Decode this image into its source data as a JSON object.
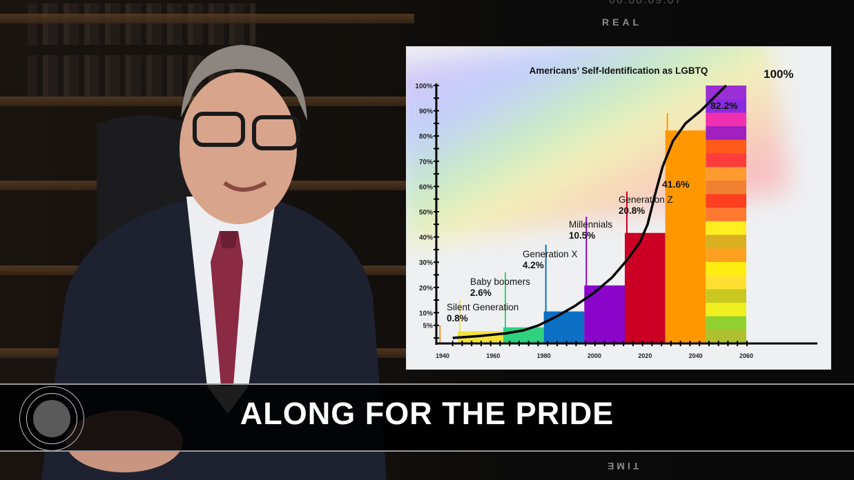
{
  "broadcast": {
    "hud_top_label": "REAL",
    "hud_bottom_label": "TIME",
    "timecode": "00:00:09:07",
    "lower_third_title": "ALONG FOR THE PRIDE"
  },
  "chart_data": {
    "type": "bar",
    "title": "Americans’ Self-Identification as LGBTQ",
    "xlabel": "",
    "ylabel": "",
    "x_ticks": [
      "1940",
      "1960",
      "1980",
      "2000",
      "2020",
      "2040",
      "2060"
    ],
    "y_ticks": [
      "5%",
      "10%",
      "20%",
      "30%",
      "40%",
      "50%",
      "60%",
      "70%",
      "80%",
      "90%",
      "100%"
    ],
    "xlim": [
      1940,
      2060
    ],
    "ylim": [
      0,
      100
    ],
    "grid": false,
    "bars": [
      {
        "category": "Silent Generation",
        "label": "0.8%",
        "value": 0.8,
        "start": 1938,
        "end": 1946,
        "color": "#e8952a"
      },
      {
        "category": "Baby boomers",
        "label": "2.6%",
        "value": 2.6,
        "start": 1946,
        "end": 1964,
        "color": "#f2e23a"
      },
      {
        "category": "Generation X",
        "label": "4.2%",
        "value": 4.2,
        "start": 1964,
        "end": 1980,
        "color": "#2fd07e"
      },
      {
        "category": "Millennials",
        "label": "10.5%",
        "value": 10.5,
        "start": 1980,
        "end": 1996,
        "color": "#0b6fc4"
      },
      {
        "category": "Generation Z",
        "label": "20.8%",
        "value": 20.8,
        "start": 1996,
        "end": 2012,
        "color": "#8a05c9"
      },
      {
        "category": "",
        "label": "41.6%",
        "value": 41.6,
        "start": 2012,
        "end": 2028,
        "color": "#cc0024"
      },
      {
        "category": "",
        "label": "82.2%",
        "value": 82.2,
        "start": 2028,
        "end": 2044,
        "color": "#ff9800"
      },
      {
        "category": "",
        "label": "100%",
        "value": 100,
        "start": 2044,
        "end": 2060,
        "color": "rainbow"
      }
    ],
    "rainbow_stripes": [
      "#9b2fd6",
      "#8a2be2",
      "#f030b0",
      "#a020c0",
      "#ff5a1a",
      "#ff3c3c",
      "#ff9a30",
      "#f08030",
      "#ff4020",
      "#ff7a30",
      "#ffee20",
      "#d8b020",
      "#ffa020",
      "#ffee10",
      "#ffe030",
      "#c8c820",
      "#f0f020",
      "#90d030",
      "#b0c030"
    ],
    "trend_curve": [
      [
        1944,
        0
      ],
      [
        1955,
        0.8
      ],
      [
        1965,
        1.8
      ],
      [
        1972,
        3
      ],
      [
        1978,
        5
      ],
      [
        1985,
        8.5
      ],
      [
        1992,
        12.5
      ],
      [
        2000,
        18
      ],
      [
        2007,
        24
      ],
      [
        2013,
        31
      ],
      [
        2018,
        38
      ],
      [
        2021,
        45
      ],
      [
        2024,
        57
      ],
      [
        2027,
        68
      ],
      [
        2031,
        78
      ],
      [
        2036,
        85
      ],
      [
        2042,
        90
      ],
      [
        2047,
        95
      ],
      [
        2052,
        100
      ]
    ],
    "curve_color": "#000000"
  }
}
